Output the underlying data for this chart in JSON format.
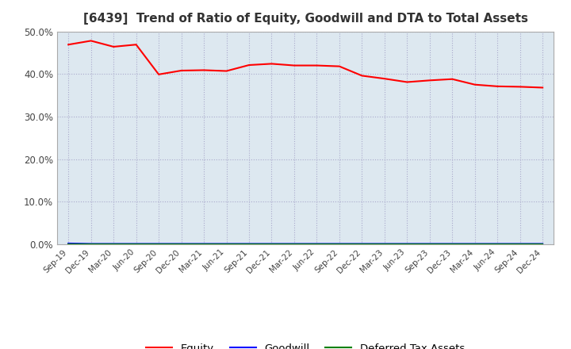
{
  "title": "[6439]  Trend of Ratio of Equity, Goodwill and DTA to Total Assets",
  "x_labels": [
    "Sep-19",
    "Dec-19",
    "Mar-20",
    "Jun-20",
    "Sep-20",
    "Dec-20",
    "Mar-21",
    "Jun-21",
    "Sep-21",
    "Dec-21",
    "Mar-22",
    "Jun-22",
    "Sep-22",
    "Dec-22",
    "Mar-23",
    "Jun-23",
    "Sep-23",
    "Dec-23",
    "Mar-24",
    "Jun-24",
    "Sep-24",
    "Dec-24"
  ],
  "equity": [
    0.469,
    0.478,
    0.464,
    0.469,
    0.399,
    0.408,
    0.409,
    0.407,
    0.421,
    0.424,
    0.42,
    0.42,
    0.418,
    0.396,
    0.389,
    0.381,
    0.385,
    0.388,
    0.375,
    0.371,
    0.37,
    0.368
  ],
  "goodwill": [
    0.002,
    0.001,
    0.001,
    0.001,
    0.001,
    0.001,
    0.001,
    0.001,
    0.001,
    0.001,
    0.001,
    0.001,
    0.001,
    0.001,
    0.001,
    0.001,
    0.001,
    0.001,
    0.001,
    0.001,
    0.001,
    0.001
  ],
  "dta": [
    0.0,
    0.0,
    0.0,
    0.0,
    0.0,
    0.0,
    0.0,
    0.0,
    0.0,
    0.0,
    0.0,
    0.0,
    0.0,
    0.0,
    0.0,
    0.0,
    0.0,
    0.0,
    0.0,
    0.0,
    0.0,
    0.0
  ],
  "equity_color": "#FF0000",
  "goodwill_color": "#0000FF",
  "dta_color": "#008000",
  "ylim": [
    0.0,
    0.5
  ],
  "yticks": [
    0.0,
    0.1,
    0.2,
    0.3,
    0.4,
    0.5
  ],
  "background_color": "#FFFFFF",
  "plot_bg_color": "#DDE8F0",
  "grid_color": "#AAAACC",
  "title_fontsize": 11,
  "legend_labels": [
    "Equity",
    "Goodwill",
    "Deferred Tax Assets"
  ],
  "tick_color": "#444444",
  "spine_color": "#AAAAAA"
}
